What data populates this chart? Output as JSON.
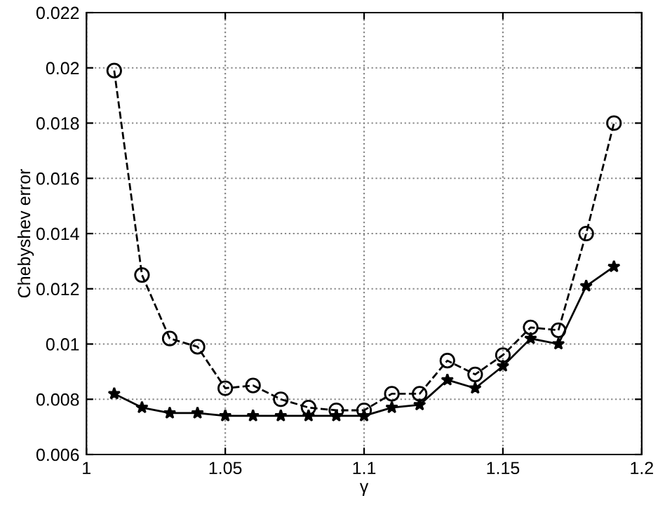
{
  "chart_data": {
    "type": "line",
    "xlabel": "γ",
    "ylabel": "Chebyshev error",
    "x": [
      1.01,
      1.02,
      1.03,
      1.04,
      1.05,
      1.06,
      1.07,
      1.08,
      1.09,
      1.1,
      1.11,
      1.12,
      1.13,
      1.14,
      1.15,
      1.16,
      1.17,
      1.18,
      1.19
    ],
    "series": [
      {
        "color": "#000000",
        "marker": "circle",
        "line_style": "dashed",
        "values": [
          0.0199,
          0.0125,
          0.0102,
          0.0099,
          0.0084,
          0.0085,
          0.008,
          0.0077,
          0.0076,
          0.0076,
          0.0082,
          0.0082,
          0.0094,
          0.0089,
          0.0096,
          0.0106,
          0.0105,
          0.014,
          0.018
        ]
      },
      {
        "color": "#000000",
        "marker": "star",
        "line_style": "solid",
        "values": [
          0.0082,
          0.0077,
          0.0075,
          0.0075,
          0.0074,
          0.0074,
          0.0074,
          0.0074,
          0.0074,
          0.0074,
          0.0077,
          0.0078,
          0.0087,
          0.0084,
          0.0092,
          0.0102,
          0.01,
          0.0121,
          0.0128
        ]
      }
    ],
    "xlim": [
      1,
      1.2
    ],
    "xticks": [
      1,
      1.05,
      1.1,
      1.15,
      1.2
    ],
    "ylim": [
      0.006,
      0.022
    ],
    "yticks": [
      0.006,
      0.008,
      0.01,
      0.012,
      0.014,
      0.016,
      0.018,
      0.02,
      0.022
    ],
    "grid": true,
    "legend": false
  }
}
